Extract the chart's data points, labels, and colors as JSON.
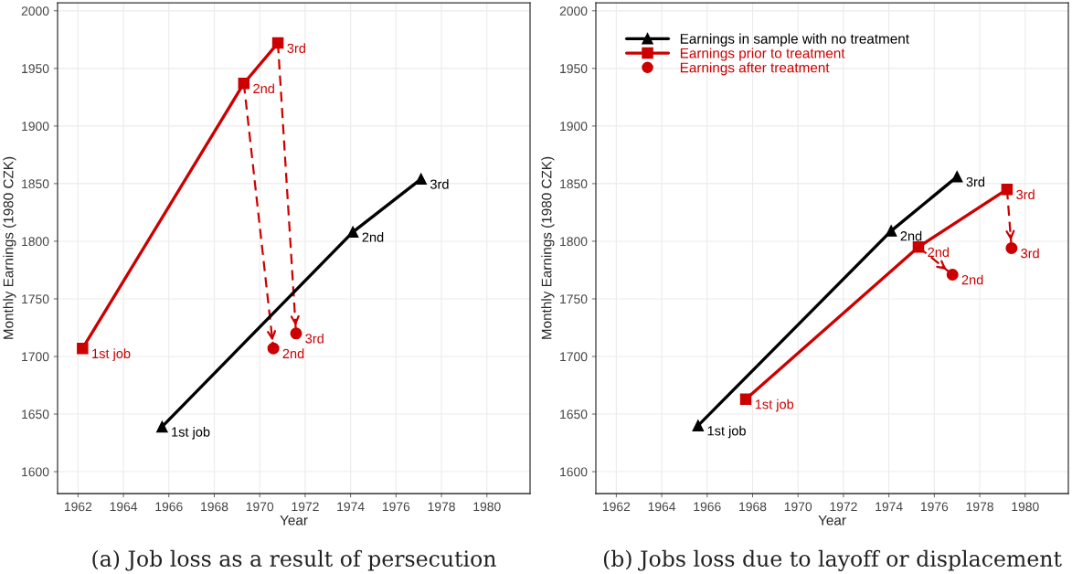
{
  "chart_data": [
    {
      "type": "line",
      "xlabel": "Year",
      "ylabel": "Monthly Earnings (1980 CZK)",
      "xlim": [
        1961.1,
        1981.9
      ],
      "ylim": [
        1581,
        2007
      ],
      "xticks": [
        1962,
        1964,
        1966,
        1968,
        1970,
        1972,
        1974,
        1976,
        1978,
        1980
      ],
      "yticks": [
        1600,
        1650,
        1700,
        1750,
        1800,
        1850,
        1900,
        1950,
        2000
      ],
      "grid": true,
      "legend": false,
      "annotations": [
        "(a) Job loss as a result of persecution",
        {
          "text": "1st job",
          "x": 1965.7,
          "y": 1639
        },
        {
          "text": "2nd",
          "x": 1974.1,
          "y": 1808
        },
        {
          "text": "3rd",
          "x": 1977.1,
          "y": 1854
        },
        {
          "text": "1st job",
          "x": 1962.2,
          "y": 1707
        },
        {
          "text": "2nd",
          "x": 1969.3,
          "y": 1937
        },
        {
          "text": "3rd",
          "x": 1970.8,
          "y": 1972
        },
        {
          "text": "2nd",
          "x": 1970.6,
          "y": 1707
        },
        {
          "text": "3rd",
          "x": 1971.6,
          "y": 1720
        }
      ],
      "series": [
        {
          "color": "#000000",
          "marker": "triangle",
          "line_style": "solid",
          "x": [
            1965.7,
            1974.1,
            1977.1
          ],
          "values": [
            1639,
            1808,
            1854
          ]
        },
        {
          "color": "#cc0000",
          "marker": "square",
          "line_style": "solid",
          "x": [
            1962.2,
            1969.3,
            1970.8
          ],
          "values": [
            1707,
            1937,
            1972
          ]
        },
        {
          "type": "scatter",
          "color": "#cc0000",
          "marker": "circle",
          "x": [
            1970.6,
            1971.6
          ],
          "values": [
            1707,
            1720
          ]
        },
        {
          "color": "#cc0000",
          "marker": "none",
          "line_style": "dashed",
          "x": [
            1969.3,
            1970.6
          ],
          "values": [
            1937,
            1707
          ]
        },
        {
          "color": "#cc0000",
          "marker": "none",
          "line_style": "dashed",
          "x": [
            1970.8,
            1971.6
          ],
          "values": [
            1972,
            1720
          ]
        }
      ]
    },
    {
      "type": "line",
      "xlabel": "Year",
      "ylabel": "Monthly Earnings (1980 CZK)",
      "xlim": [
        1961.1,
        1981.9
      ],
      "ylim": [
        1581,
        2007
      ],
      "xticks": [
        1962,
        1964,
        1966,
        1968,
        1970,
        1972,
        1974,
        1976,
        1978,
        1980
      ],
      "yticks": [
        1600,
        1650,
        1700,
        1750,
        1800,
        1850,
        1900,
        1950,
        2000
      ],
      "grid": true,
      "legend": "top left",
      "annotations": [
        "(b) Jobs loss due to layoff or displacement",
        {
          "text": "1st job",
          "x": 1965.6,
          "y": 1640
        },
        {
          "text": "2nd",
          "x": 1974.1,
          "y": 1809
        },
        {
          "text": "3rd",
          "x": 1977.0,
          "y": 1856
        },
        {
          "text": "1st job",
          "x": 1967.7,
          "y": 1663
        },
        {
          "text": "2nd",
          "x": 1975.3,
          "y": 1795
        },
        {
          "text": "3rd",
          "x": 1979.2,
          "y": 1845
        },
        {
          "text": "2nd",
          "x": 1976.8,
          "y": 1771
        },
        {
          "text": "3rd",
          "x": 1979.4,
          "y": 1794
        }
      ],
      "series": [
        {
          "name": "Earnings in sample with no treatment",
          "color": "#000000",
          "marker": "triangle",
          "line_style": "solid",
          "x": [
            1965.6,
            1974.1,
            1977.0
          ],
          "values": [
            1640,
            1809,
            1856
          ]
        },
        {
          "name": "Earnings prior to treatment",
          "color": "#cc0000",
          "marker": "square",
          "line_style": "solid",
          "x": [
            1967.7,
            1975.3,
            1979.2
          ],
          "values": [
            1663,
            1795,
            1845
          ]
        },
        {
          "type": "scatter",
          "name": "Earnings after treatment",
          "color": "#cc0000",
          "marker": "circle",
          "x": [
            1976.8,
            1979.4
          ],
          "values": [
            1771,
            1794
          ]
        },
        {
          "color": "#cc0000",
          "marker": "none",
          "line_style": "dashed",
          "x": [
            1975.3,
            1976.8
          ],
          "values": [
            1795,
            1771
          ]
        },
        {
          "color": "#cc0000",
          "marker": "none",
          "line_style": "dashed",
          "x": [
            1979.2,
            1979.4
          ],
          "values": [
            1845,
            1794
          ]
        }
      ]
    }
  ]
}
